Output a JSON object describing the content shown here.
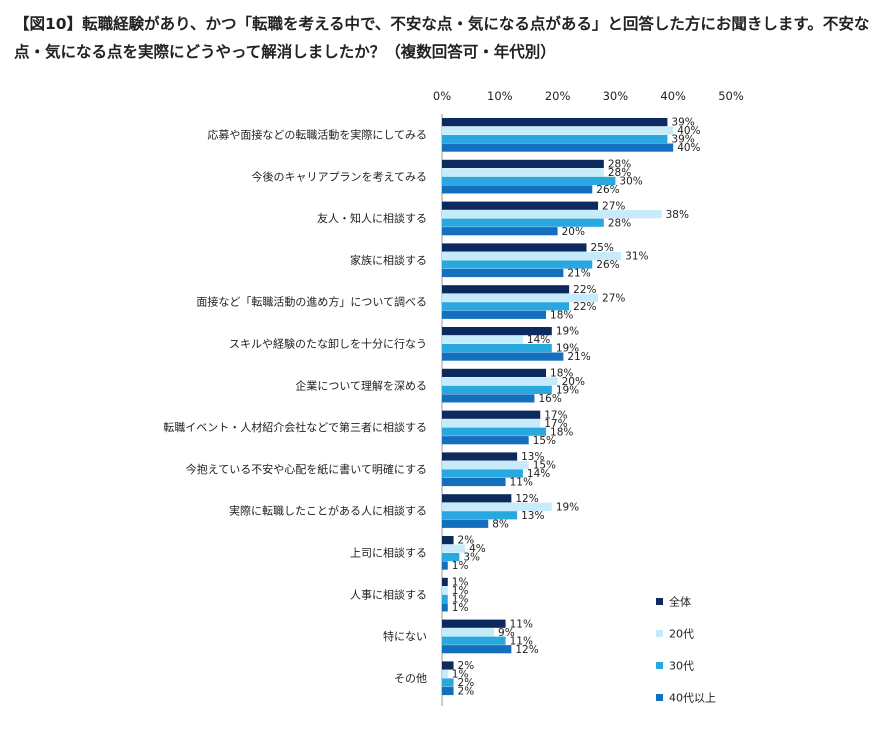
{
  "title": "【図10】転職経験があり、かつ「転職を考える中で、不安な点・気になる点がある」と回答した方にお聞きします。不安な点・気になる点を実際にどうやって解消しましたか？（複数回答可・年代別）",
  "chart_data": {
    "type": "bar",
    "orientation": "horizontal",
    "xlim": [
      0,
      50
    ],
    "xticks": [
      "0%",
      "10%",
      "20%",
      "30%",
      "40%",
      "50%"
    ],
    "value_suffix": "%",
    "categories": [
      "応募や面接などの転職活動を実際にしてみる",
      "今後のキャリアプランを考えてみる",
      "友人・知人に相談する",
      "家族に相談する",
      "面接など「転職活動の進め方」について調べる",
      "スキルや経験のたな卸しを十分に行なう",
      "企業について理解を深める",
      "転職イベント・人材紹介会社などで第三者に相談する",
      "今抱えている不安や心配を紙に書いて明確にする",
      "実際に転職したことがある人に相談する",
      "上司に相談する",
      "人事に相談する",
      "特にない",
      "その他"
    ],
    "series": [
      {
        "name": "全体",
        "color": "#0d2a5e",
        "values": [
          39,
          28,
          27,
          25,
          22,
          19,
          18,
          17,
          13,
          12,
          2,
          1,
          11,
          2
        ]
      },
      {
        "name": "20代",
        "color": "#c6ebfb",
        "values": [
          40,
          28,
          38,
          31,
          27,
          14,
          20,
          17,
          15,
          19,
          4,
          1,
          9,
          1
        ]
      },
      {
        "name": "30代",
        "color": "#29a8df",
        "values": [
          39,
          30,
          28,
          26,
          22,
          19,
          19,
          18,
          14,
          13,
          3,
          1,
          11,
          2
        ]
      },
      {
        "name": "40代以上",
        "color": "#1470bf",
        "values": [
          40,
          26,
          20,
          21,
          18,
          21,
          16,
          15,
          11,
          8,
          1,
          1,
          12,
          2
        ]
      }
    ],
    "legend_position": "bottom-right",
    "grid": false
  }
}
